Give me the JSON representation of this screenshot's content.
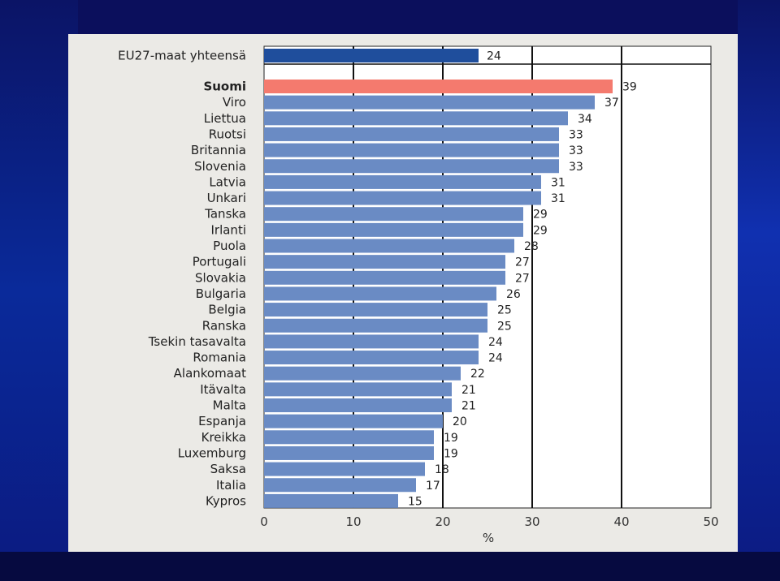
{
  "chart_data": {
    "type": "bar",
    "orientation": "horizontal",
    "title": "",
    "xlabel": "%",
    "ylabel": "",
    "xlim": [
      0,
      50
    ],
    "x_ticks": [
      0,
      10,
      20,
      30,
      40,
      50
    ],
    "grid": true,
    "summary": {
      "label": "EU27-maat yhteensä",
      "value": 24,
      "color": "#1f4e9c"
    },
    "categories": [
      "Suomi",
      "Viro",
      "Liettua",
      "Ruotsi",
      "Britannia",
      "Slovenia",
      "Latvia",
      "Unkari",
      "Tanska",
      "Irlanti",
      "Puola",
      "Portugali",
      "Slovakia",
      "Bulgaria",
      "Belgia",
      "Ranska",
      "Tsekin tasavalta",
      "Romania",
      "Alankomaat",
      "Itävalta",
      "Malta",
      "Espanja",
      "Kreikka",
      "Luxemburg",
      "Saksa",
      "Italia",
      "Kypros"
    ],
    "values": [
      39,
      37,
      34,
      33,
      33,
      33,
      31,
      31,
      29,
      29,
      28,
      27,
      27,
      26,
      25,
      25,
      24,
      24,
      22,
      21,
      21,
      20,
      19,
      19,
      18,
      17,
      15
    ],
    "highlight": "Suomi",
    "colors": {
      "bar": "#6a8bc4",
      "highlight": "#f47a6e",
      "summary": "#1f4e9c"
    }
  }
}
